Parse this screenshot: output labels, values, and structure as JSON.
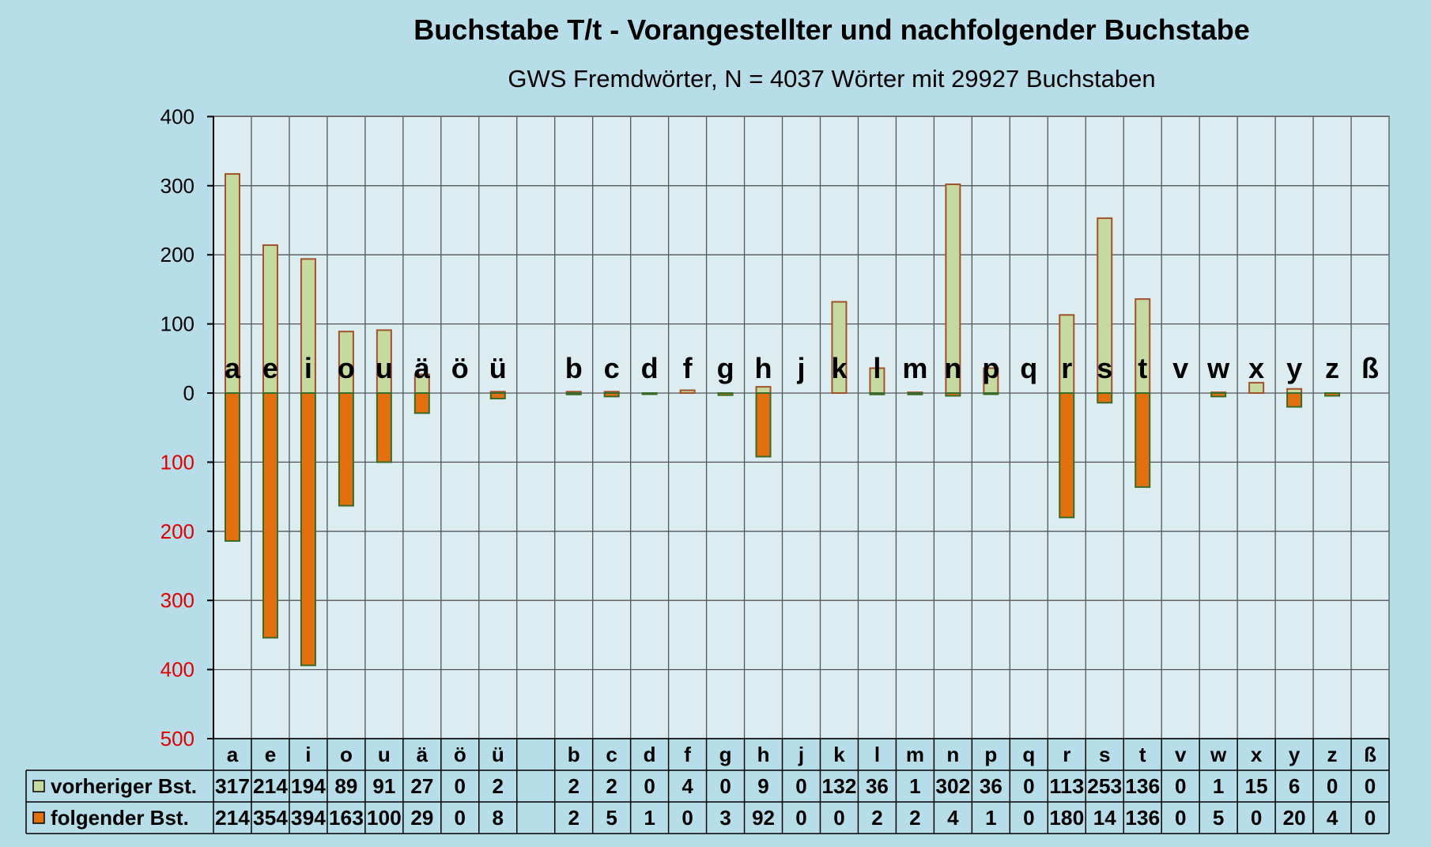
{
  "chart_data": {
    "type": "bar",
    "title": "Buchstabe T/t - Vorangestellter und nachfolgender Buchstabe",
    "subtitle": "GWS Fremdwörter,  N = 4037 Wörter mit 29927 Buchstaben",
    "categories": [
      "a",
      "e",
      "i",
      "o",
      "u",
      "ä",
      "ö",
      "ü",
      "",
      "b",
      "c",
      "d",
      "f",
      "g",
      "h",
      "j",
      "k",
      "l",
      "m",
      "n",
      "p",
      "q",
      "r",
      "s",
      "t",
      "v",
      "w",
      "x",
      "y",
      "z",
      "ß"
    ],
    "series": [
      {
        "name": "vorheriger Bst.",
        "color": "#c5d9a0",
        "border": "#a0522d",
        "direction": "up",
        "values": [
          317,
          214,
          194,
          89,
          91,
          27,
          0,
          2,
          null,
          2,
          2,
          0,
          4,
          0,
          9,
          0,
          132,
          36,
          1,
          302,
          36,
          0,
          113,
          253,
          136,
          0,
          1,
          15,
          6,
          0,
          0
        ]
      },
      {
        "name": "folgender Bst.",
        "color": "#e3700f",
        "border": "#3a6a2a",
        "direction": "down",
        "values": [
          214,
          354,
          394,
          163,
          100,
          29,
          0,
          8,
          null,
          2,
          5,
          1,
          0,
          3,
          92,
          0,
          0,
          2,
          2,
          4,
          1,
          0,
          180,
          14,
          136,
          0,
          5,
          0,
          20,
          4,
          0
        ]
      }
    ],
    "y_ticks_upper": [
      "400",
      "300",
      "200",
      "100",
      "0"
    ],
    "y_ticks_lower": [
      "100",
      "200",
      "300",
      "400",
      "500"
    ],
    "ylim": [
      -500,
      400
    ],
    "grid": true,
    "legend": "data-table",
    "colors": {
      "background": "#b7dde8",
      "plot_background": "#dcedf2",
      "grid": "#555555",
      "lower_tick_color": "#e00000"
    }
  }
}
